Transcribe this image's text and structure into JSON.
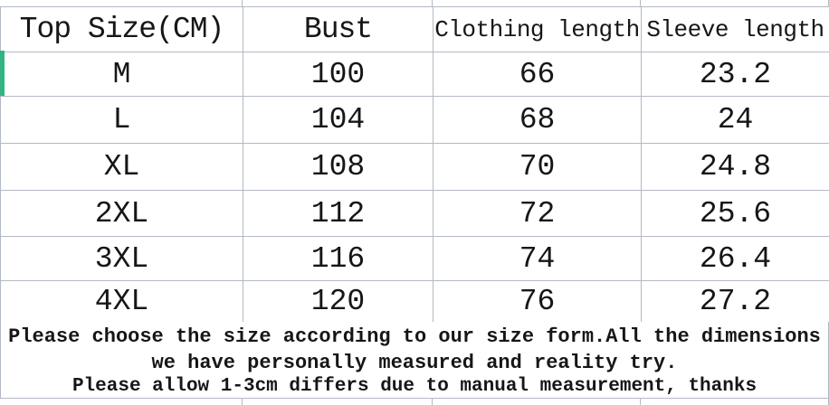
{
  "chart_data": {
    "type": "table",
    "title": "Top Size(CM)",
    "columns": [
      "Top Size(CM)",
      "Bust",
      "Clothing length",
      "Sleeve length"
    ],
    "rows": [
      {
        "size": "M",
        "bust": "100",
        "clothing_length": "66",
        "sleeve_length": "23.2"
      },
      {
        "size": "L",
        "bust": "104",
        "clothing_length": "68",
        "sleeve_length": "24"
      },
      {
        "size": "XL",
        "bust": "108",
        "clothing_length": "70",
        "sleeve_length": "24.8"
      },
      {
        "size": "2XL",
        "bust": "112",
        "clothing_length": "72",
        "sleeve_length": "25.6"
      },
      {
        "size": "3XL",
        "bust": "116",
        "clothing_length": "74",
        "sleeve_length": "26.4"
      },
      {
        "size": "4XL",
        "bust": "120",
        "clothing_length": "76",
        "sleeve_length": "27.2"
      }
    ]
  },
  "table": {
    "columns": [
      "Top Size(CM)",
      "Bust",
      "Clothing length",
      "Sleeve length"
    ],
    "rows": [
      {
        "size": "M",
        "bust": "100",
        "clothing_length": "66",
        "sleeve_length": "23.2"
      },
      {
        "size": "L",
        "bust": "104",
        "clothing_length": "68",
        "sleeve_length": "24"
      },
      {
        "size": "XL",
        "bust": "108",
        "clothing_length": "70",
        "sleeve_length": "24.8"
      },
      {
        "size": "2XL",
        "bust": "112",
        "clothing_length": "72",
        "sleeve_length": "25.6"
      },
      {
        "size": "3XL",
        "bust": "116",
        "clothing_length": "74",
        "sleeve_length": "26.4"
      },
      {
        "size": "4XL",
        "bust": "120",
        "clothing_length": "76",
        "sleeve_length": "27.2"
      }
    ]
  },
  "notes": {
    "line1": "Please choose the size according to our size form.All the dimensions",
    "line2": "we have personally measured and reality try.",
    "line3": "Please allow 1-3cm differs due to manual measurement, thanks"
  },
  "colors": {
    "grid_line": "#b3b9c4",
    "text": "#161616",
    "selection_green": "#33b583",
    "background": "#ffffff"
  }
}
